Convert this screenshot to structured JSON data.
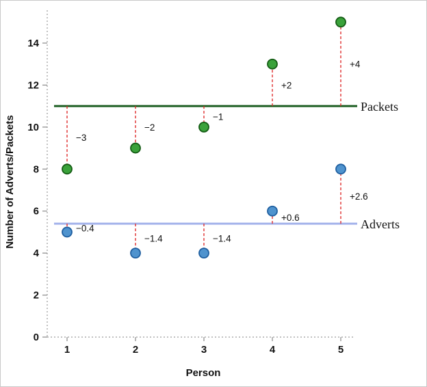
{
  "chart_data": {
    "type": "scatter",
    "title": "",
    "xlabel": "Person",
    "ylabel": "Number of Adverts/Packets",
    "x": [
      "1",
      "2",
      "3",
      "4",
      "5"
    ],
    "yticks": [
      0,
      2,
      4,
      6,
      8,
      10,
      12,
      14
    ],
    "ylim": [
      0,
      15.5
    ],
    "grid": "off",
    "legend_position": "right-of-mean-lines",
    "series": [
      {
        "name": "Packets",
        "values": [
          8,
          9,
          10,
          13,
          15
        ],
        "mean": 11,
        "deviation_labels": [
          "−3",
          "−2",
          "−1",
          "+2",
          "+4"
        ],
        "point_color": "#3aa23a",
        "point_ring_color": "#145c14",
        "mean_line_color": "#1b5e20"
      },
      {
        "name": "Adverts",
        "values": [
          5,
          4,
          4,
          6,
          8
        ],
        "mean": 5.4,
        "deviation_labels": [
          "−0.4",
          "−1.4",
          "−1.4",
          "+0.6",
          "+2.6"
        ],
        "point_color": "#4f93ce",
        "point_ring_color": "#1f5fa0",
        "mean_line_color": "#a3b2ea"
      }
    ],
    "deviation_line_color": "#df2b2b",
    "axis_line_color": "#9a9a9a"
  }
}
